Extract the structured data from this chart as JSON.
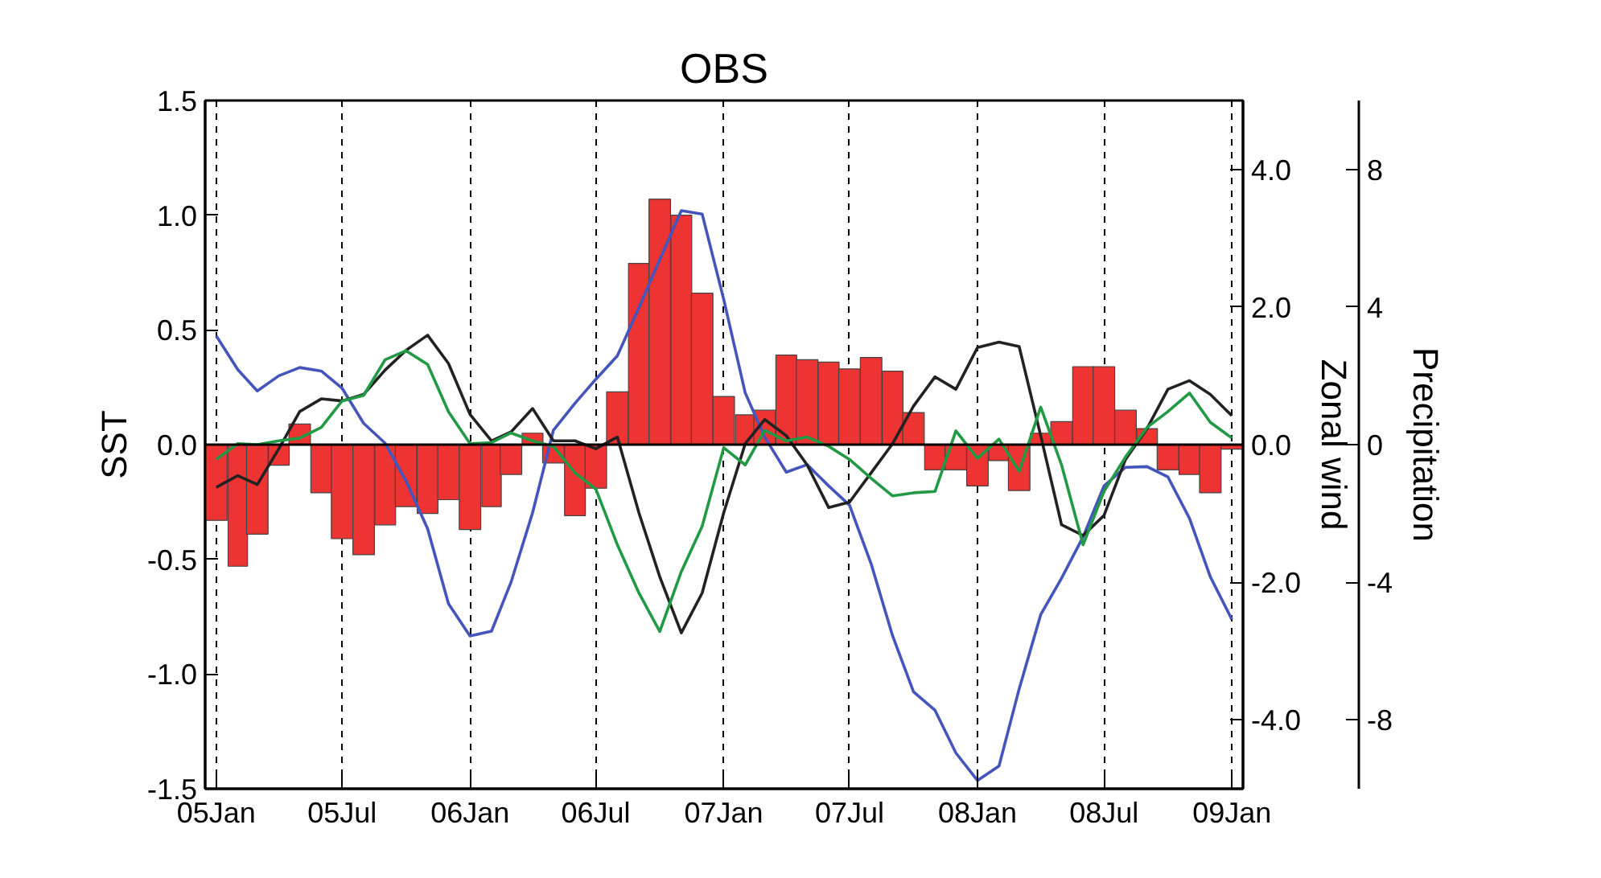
{
  "chart_data": {
    "type": "bar",
    "title": "OBS",
    "ylabel": "SST",
    "y2label": "Zonal wind",
    "y3label": "Precipitation",
    "x": [
      "2005-01",
      "2005-02",
      "2005-03",
      "2005-04",
      "2005-05",
      "2005-06",
      "2005-07",
      "2005-08",
      "2005-09",
      "2005-10",
      "2005-11",
      "2005-12",
      "2006-01",
      "2006-02",
      "2006-03",
      "2006-04",
      "2006-05",
      "2006-06",
      "2006-07",
      "2006-08",
      "2006-09",
      "2006-10",
      "2006-11",
      "2006-12",
      "2007-01",
      "2007-02",
      "2007-03",
      "2007-04",
      "2007-05",
      "2007-06",
      "2007-07",
      "2007-08",
      "2007-09",
      "2007-10",
      "2007-11",
      "2007-12",
      "2008-01",
      "2008-02",
      "2008-03",
      "2008-04",
      "2008-05",
      "2008-06",
      "2008-07",
      "2008-08",
      "2008-09",
      "2008-10",
      "2008-11",
      "2008-12",
      "2009-01"
    ],
    "series": [
      {
        "color": "#ee3333",
        "values": [
          -0.33,
          -0.53,
          -0.39,
          -0.09,
          0.09,
          -0.21,
          -0.41,
          -0.48,
          -0.35,
          -0.27,
          -0.3,
          -0.24,
          -0.37,
          -0.27,
          -0.13,
          0.05,
          -0.08,
          -0.31,
          -0.19,
          0.23,
          0.79,
          1.07,
          1.0,
          0.66,
          0.21,
          0.13,
          0.15,
          0.39,
          0.37,
          0.36,
          0.33,
          0.38,
          0.32,
          0.14,
          -0.11,
          -0.11,
          -0.18,
          -0.07,
          -0.2,
          0.05,
          0.1,
          0.34,
          0.34,
          0.15,
          0.07,
          -0.11,
          -0.13,
          -0.21,
          -0.02
        ]
      },
      {
        "type": "line",
        "axis": "y2",
        "color": "#4455bb",
        "values": [
          1.58,
          1.09,
          0.78,
          1.0,
          1.12,
          1.07,
          0.82,
          0.31,
          0.02,
          -0.53,
          -1.22,
          -2.31,
          -2.78,
          -2.71,
          -2.0,
          -0.99,
          0.21,
          0.6,
          0.95,
          1.29,
          1.99,
          2.69,
          3.4,
          3.35,
          2.11,
          0.75,
          0.11,
          -0.4,
          -0.29,
          -0.6,
          -0.88,
          -1.73,
          -2.78,
          -3.59,
          -3.86,
          -4.48,
          -4.88,
          -4.67,
          -3.55,
          -2.47,
          -1.94,
          -1.34,
          -0.6,
          -0.33,
          -0.32,
          -0.47,
          -1.07,
          -1.92,
          -2.54
        ]
      },
      {
        "type": "line",
        "axis": "y3",
        "color": "#222222",
        "values": [
          -1.24,
          -0.9,
          -1.16,
          -0.12,
          0.96,
          1.33,
          1.27,
          1.46,
          2.17,
          2.74,
          3.18,
          2.36,
          0.88,
          0.11,
          0.37,
          1.05,
          0.11,
          0.11,
          -0.12,
          0.22,
          -1.98,
          -3.84,
          -5.47,
          -4.31,
          -1.98,
          0.03,
          0.73,
          0.26,
          -0.59,
          -1.83,
          -1.67,
          -0.82,
          0.03,
          1.12,
          1.97,
          1.61,
          2.82,
          2.98,
          2.85,
          0.26,
          -2.33,
          -2.64,
          -2.06,
          -0.43,
          0.47,
          1.61,
          1.86,
          1.46,
          0.84
        ]
      },
      {
        "type": "line",
        "axis": "y3",
        "color": "#229944",
        "values": [
          -0.43,
          0.03,
          0,
          0.11,
          0.19,
          0.5,
          1.27,
          1.43,
          2.47,
          2.73,
          2.33,
          0.96,
          0.03,
          0.06,
          0.34,
          0.11,
          -0.05,
          -0.82,
          -1.29,
          -2.91,
          -4.31,
          -5.43,
          -3.69,
          -2.37,
          -0.09,
          -0.59,
          0.42,
          0.11,
          0.22,
          -0.05,
          -0.43,
          -0.98,
          -1.49,
          -1.4,
          -1.36,
          0.4,
          -0.4,
          0.16,
          -0.78,
          1.09,
          -0.59,
          -2.91,
          -1.36,
          -0.36,
          0.5,
          0.96,
          1.5,
          0.65,
          0.19
        ]
      }
    ],
    "xlim": [
      "2004-12-16",
      "2009-01-17"
    ],
    "xticks": [
      {
        "value": "2005-01",
        "label": "05Jan"
      },
      {
        "value": "2005-07",
        "label": "05Jul"
      },
      {
        "value": "2006-01",
        "label": "06Jan"
      },
      {
        "value": "2006-07",
        "label": "06Jul"
      },
      {
        "value": "2007-01",
        "label": "07Jan"
      },
      {
        "value": "2007-07",
        "label": "07Jul"
      },
      {
        "value": "2008-01",
        "label": "08Jan"
      },
      {
        "value": "2008-07",
        "label": "08Jul"
      },
      {
        "value": "2009-01",
        "label": "09Jan"
      }
    ],
    "ylim": [
      -1.5,
      1.5
    ],
    "yticks": [
      -1.5,
      {
        "value": -1.0,
        "label": "-1.0"
      },
      -0.5,
      {
        "value": 0,
        "label": "0.0"
      },
      0.5,
      {
        "value": 1.0,
        "label": "1.0"
      },
      1.5
    ],
    "y2lim": [
      -5,
      5
    ],
    "y2ticks": [
      {
        "value": -4,
        "label": "-4.0"
      },
      {
        "value": -2,
        "label": "-2.0"
      },
      {
        "value": 0,
        "label": "0.0"
      },
      {
        "value": 2,
        "label": "2.0"
      },
      {
        "value": 4,
        "label": "4.0"
      }
    ],
    "y3lim": [
      -10,
      10
    ],
    "y3ticks": [
      -8,
      -4,
      0,
      4,
      8
    ],
    "ref_lines": [
      {
        "axis": "y",
        "value": 0,
        "color": "#000000"
      }
    ],
    "grid": "x"
  }
}
